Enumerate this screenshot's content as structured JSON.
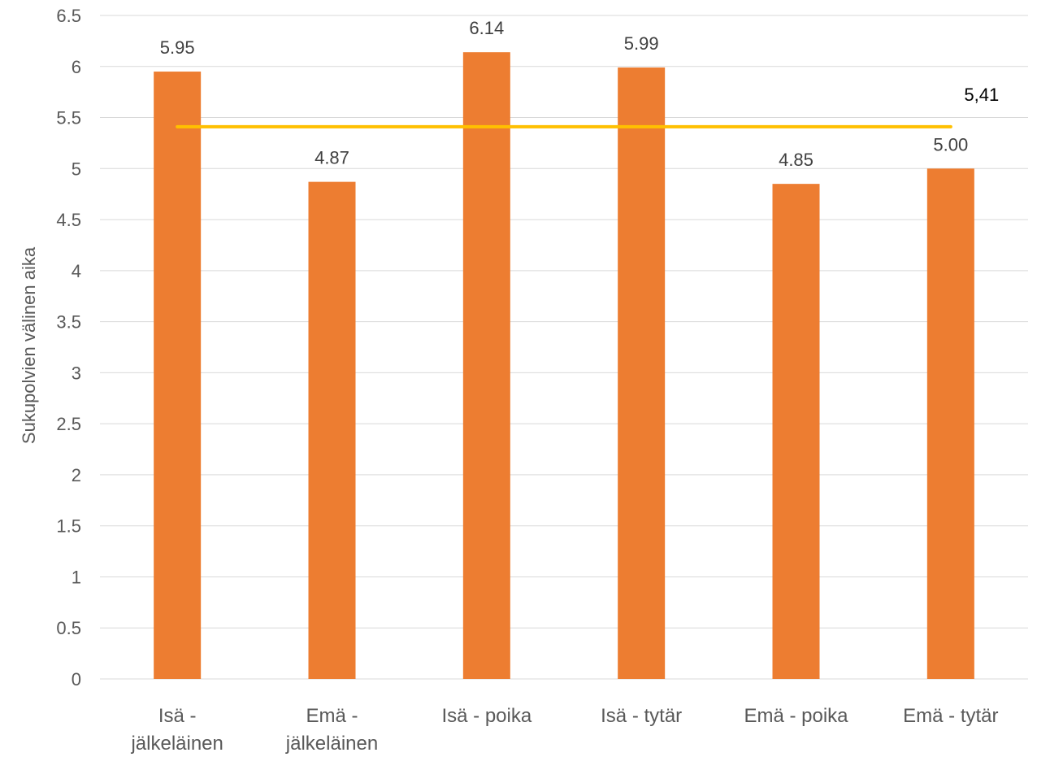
{
  "chart_data": {
    "type": "bar",
    "ylabel": "Sukupolvien välinen aika",
    "ylim": [
      0,
      6.5
    ],
    "ytick_step": 0.5,
    "yticks": [
      "0",
      "0.5",
      "1",
      "1.5",
      "2",
      "2.5",
      "3",
      "3.5",
      "4",
      "4.5",
      "5",
      "5.5",
      "6",
      "6.5"
    ],
    "grid": true,
    "categories": [
      [
        "Isä -",
        "jälkeläinen"
      ],
      [
        "Emä -",
        "jälkeläinen"
      ],
      [
        "Isä - poika"
      ],
      [
        "Isä - tytär"
      ],
      [
        "Emä - poika"
      ],
      [
        "Emä - tytär"
      ]
    ],
    "values": [
      5.95,
      4.87,
      6.14,
      5.99,
      4.85,
      5.0
    ],
    "data_labels": [
      "5.95",
      "4.87",
      "6.14",
      "5.99",
      "4.85",
      "5.00"
    ],
    "bar_color": "#ED7D31",
    "average_line": {
      "value": 5.41,
      "label": "5,41",
      "color": "#FFC000"
    }
  }
}
